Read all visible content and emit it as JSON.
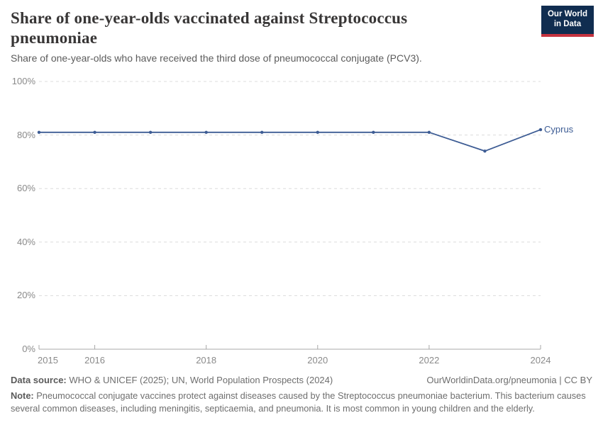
{
  "header": {
    "title": "Share of one-year-olds vaccinated against Streptococcus pneumoniae",
    "subtitle": "Share of one-year-olds who have received the third dose of pneumococcal conjugate (PCV3).",
    "logo": {
      "line1": "Our World",
      "line2": "in Data"
    }
  },
  "chart_data": {
    "type": "line",
    "title": "Share of one-year-olds vaccinated against Streptococcus pneumoniae",
    "x": [
      2015,
      2016,
      2017,
      2018,
      2019,
      2020,
      2021,
      2022,
      2023,
      2024
    ],
    "series": [
      {
        "name": "Cyprus",
        "color": "#3d5c94",
        "values": [
          81,
          81,
          81,
          81,
          81,
          81,
          81,
          81,
          74,
          82
        ]
      }
    ],
    "ylim": [
      0,
      100
    ],
    "y_tick_values": [
      0,
      20,
      40,
      60,
      80,
      100
    ],
    "y_tick_suffix": "%",
    "x_tick_years": [
      2015,
      2016,
      2018,
      2020,
      2022,
      2024
    ],
    "grid": "horizontal-dashed",
    "legend_position": "end-of-line"
  },
  "colors": {
    "line": "#3d5c94",
    "grid": "#dcdcdc",
    "axis": "#a8a8a8",
    "tick_text": "#8a8a8a",
    "logo_navy": "#102d50",
    "logo_red": "#c5333f"
  },
  "footer": {
    "data_source_label": "Data source:",
    "data_source": "WHO & UNICEF (2025); UN, World Population Prospects (2024)",
    "attribution": "OurWorldinData.org/pneumonia | CC BY",
    "note_label": "Note:",
    "note": "Pneumococcal conjugate vaccines protect against diseases caused by the Streptococcus pneumoniae bacterium. This bacterium causes several common diseases, including meningitis, septicaemia, and pneumonia. It is most common in young children and the elderly."
  }
}
